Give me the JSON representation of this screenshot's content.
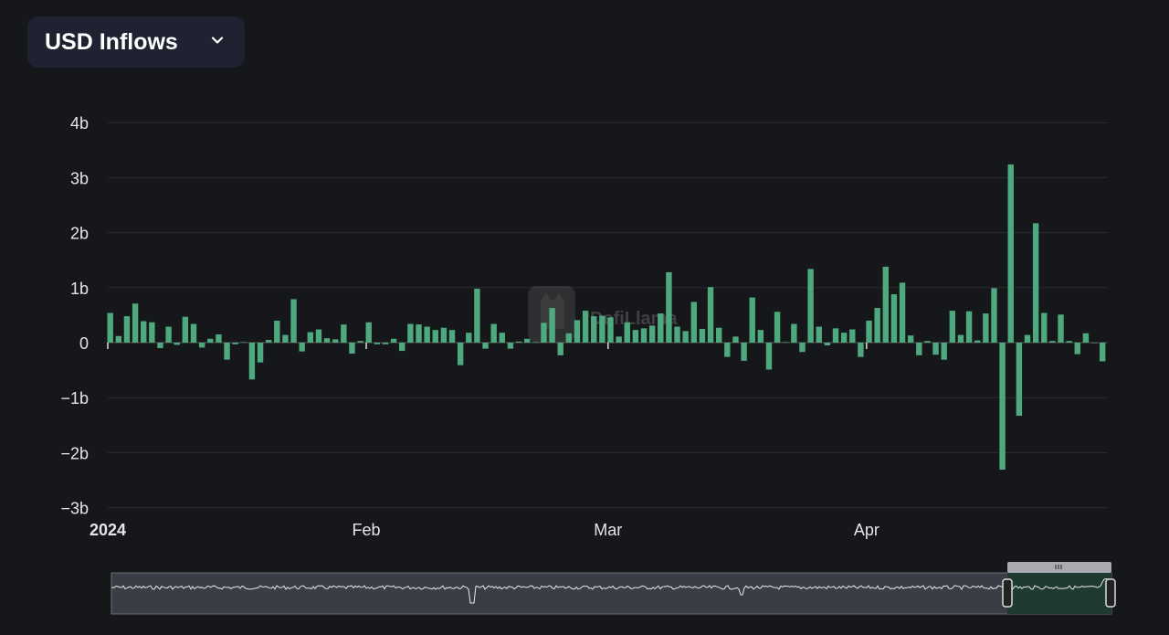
{
  "header": {
    "metric_selector_label": "USD Inflows",
    "selector_icon": "chevron-down-icon"
  },
  "watermark": {
    "text": "DefiLlama"
  },
  "colors": {
    "bar": "#4fa97f",
    "background": "#16171a",
    "grid": "#2a2c31",
    "selector_bg": "#1f2230"
  },
  "chart_data": {
    "type": "bar",
    "title": "USD Inflows",
    "xlabel": "",
    "ylabel": "",
    "unit": "USD",
    "start_date": "2024-01-01",
    "end_date": "2024-04-29",
    "ylim": [
      -3,
      4
    ],
    "yticks": [
      4,
      3,
      2,
      1,
      0,
      -1,
      -2,
      -3
    ],
    "ytick_labels": [
      "4b",
      "3b",
      "2b",
      "1b",
      "0",
      "−1b",
      "−2b",
      "−3b"
    ],
    "xtick_labels": [
      {
        "label": "2024",
        "day_index": 0,
        "bold": true
      },
      {
        "label": "Feb",
        "day_index": 31,
        "bold": false
      },
      {
        "label": "Mar",
        "day_index": 60,
        "bold": false
      },
      {
        "label": "Apr",
        "day_index": 91,
        "bold": false
      }
    ],
    "grid": true,
    "values_billions": [
      0.54,
      0.12,
      0.48,
      0.71,
      0.39,
      0.37,
      -0.1,
      0.29,
      -0.04,
      0.47,
      0.34,
      -0.09,
      0.07,
      0.15,
      -0.31,
      -0.03,
      0.01,
      -0.67,
      -0.36,
      0.05,
      0.4,
      0.14,
      0.79,
      -0.16,
      0.19,
      0.24,
      0.08,
      0.06,
      0.33,
      -0.2,
      0.03,
      0.37,
      -0.03,
      -0.03,
      0.07,
      -0.15,
      0.34,
      0.33,
      0.29,
      0.23,
      0.27,
      0.23,
      -0.41,
      0.18,
      0.98,
      -0.11,
      0.34,
      0.18,
      -0.11,
      0.02,
      0.07,
      0.01,
      0.36,
      0.63,
      -0.23,
      0.17,
      0.41,
      0.58,
      0.48,
      0.49,
      0.46,
      0.11,
      0.37,
      0.23,
      0.26,
      0.31,
      0.53,
      1.28,
      0.29,
      0.21,
      0.74,
      0.25,
      1.01,
      0.27,
      -0.26,
      0.11,
      -0.33,
      0.82,
      0.23,
      -0.49,
      0.56,
      0.01,
      0.34,
      -0.17,
      1.34,
      0.29,
      -0.05,
      0.26,
      0.18,
      0.24,
      -0.26,
      0.4,
      0.63,
      1.38,
      0.88,
      1.09,
      0.13,
      -0.23,
      0.03,
      -0.22,
      -0.31,
      0.58,
      0.14,
      0.57,
      0.04,
      0.53,
      0.99,
      -2.31,
      3.24,
      -1.33,
      0.14,
      2.17,
      0.54,
      0.03,
      0.51,
      0.03,
      -0.21,
      0.17,
      -0.01,
      -0.34
    ]
  },
  "navigator": {
    "selected_range": "2024-01-01 to 2024-04-29",
    "grip_icon": "grip-lines-icon"
  }
}
